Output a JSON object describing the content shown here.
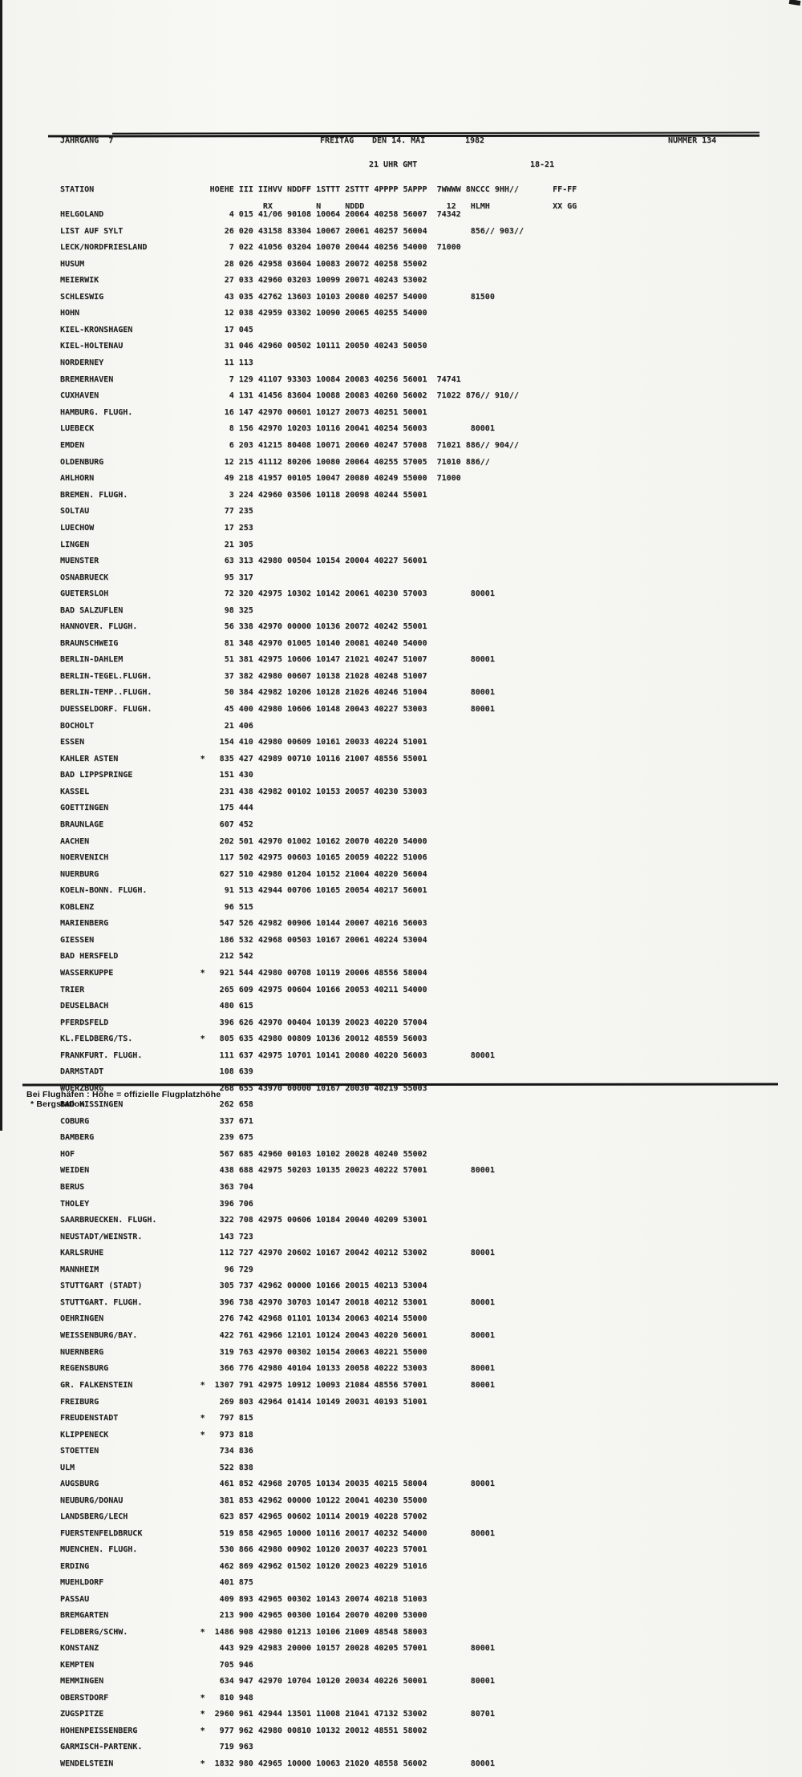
{
  "masthead": {
    "jahrgang": "JAHRGANG  7",
    "tag": "FREITAG",
    "datum": "DEN 14. MAI",
    "jahr": "1982",
    "nummer": "NUMMER 134",
    "zeit": "21 UHR GMT",
    "zeitraum": "18-21"
  },
  "columns": {
    "station": "STATION",
    "groups_main": "HOEHE III IIHVV NDDFF 1STTT 2STTT 4PPPP 5APPP",
    "groups_right": "7WWWW 8NCCC 9HH//",
    "groups_ff": "FF-FF",
    "sub_rx": "RX",
    "sub_n": "N",
    "sub_nddd": "NDDD",
    "sub_12": "12",
    "sub_hlmh": "HLMH",
    "sub_xxgg": "XX GG"
  },
  "legend": {
    "star_marker": "*",
    "row_schema": [
      "station_name",
      "bergstation_flag",
      "hoehe",
      "kennziffer",
      "code_groups",
      "right_groups",
      "right_indent"
    ]
  },
  "blocks": [
    [
      [
        "HELGOLAND",
        0,
        "4",
        "015",
        "41/06 90108 10064 20064 40258 56007",
        "74342",
        0
      ],
      [
        "LIST AUF SYLT",
        0,
        "26",
        "020",
        "43158 83304 10067 20061 40257 56004",
        "856// 903//",
        1
      ],
      [
        "LECK/NORDFRIESLAND",
        0,
        "7",
        "022",
        "41056 03204 10070 20044 40256 54000",
        "71000",
        0
      ],
      [
        "HUSUM",
        0,
        "28",
        "026",
        "42958 03604 10083 20072 40258 55002",
        "",
        0
      ],
      [
        "MEIERWIK",
        0,
        "27",
        "033",
        "42960 03203 10099 20071 40243 53002",
        "",
        0
      ],
      [
        "SCHLESWIG",
        0,
        "43",
        "035",
        "42762 13603 10103 20080 40257 54000",
        "81500",
        1
      ],
      [
        "HOHN",
        0,
        "12",
        "038",
        "42959 03302 10090 20065 40255 54000",
        "",
        0
      ],
      [
        "KIEL-KRONSHAGEN",
        0,
        "17",
        "045",
        "",
        "",
        0
      ],
      [
        "KIEL-HOLTENAU",
        0,
        "31",
        "046",
        "42960 00502 10111 20050 40243 50050",
        "",
        0
      ]
    ],
    [
      [
        "NORDERNEY",
        0,
        "11",
        "113",
        "",
        "",
        0
      ],
      [
        "BREMERHAVEN",
        0,
        "7",
        "129",
        "41107 93303 10084 20083 40256 56001",
        "74741",
        0
      ],
      [
        "CUXHAVEN",
        0,
        "4",
        "131",
        "41456 83604 10088 20083 40260 56002",
        "71022 876// 910//",
        0
      ],
      [
        "HAMBURG. FLUGH.",
        0,
        "16",
        "147",
        "42970 00601 10127 20073 40251 50001",
        "",
        0
      ],
      [
        "LUEBECK",
        0,
        "8",
        "156",
        "42970 10203 10116 20041 40254 56003",
        "80001",
        1
      ]
    ],
    [
      [
        "EMDEN",
        0,
        "6",
        "203",
        "41215 80408 10071 20060 40247 57008",
        "71021 886// 904//",
        0
      ],
      [
        "OLDENBURG",
        0,
        "12",
        "215",
        "41112 80206 10080 20064 40255 57005",
        "71010 886//",
        0
      ],
      [
        "AHLHORN",
        0,
        "49",
        "218",
        "41957 00105 10047 20080 40249 55000",
        "71000",
        0
      ],
      [
        "BREMEN. FLUGH.",
        0,
        "3",
        "224",
        "42960 03506 10118 20098 40244 55001",
        "",
        0
      ],
      [
        "SOLTAU",
        0,
        "77",
        "235",
        "",
        "",
        0
      ],
      [
        "LUECHOW",
        0,
        "17",
        "253",
        "",
        "",
        0
      ]
    ],
    [
      [
        "LINGEN",
        0,
        "21",
        "305",
        "",
        "",
        0
      ],
      [
        "MUENSTER",
        0,
        "63",
        "313",
        "42980 00504 10154 20004 40227 56001",
        "",
        0
      ],
      [
        "OSNABRUECK",
        0,
        "95",
        "317",
        "",
        "",
        0
      ],
      [
        "GUETERSLOH",
        0,
        "72",
        "320",
        "42975 10302 10142 20061 40230 57003",
        "80001",
        1
      ],
      [
        "BAD SALZUFLEN",
        0,
        "98",
        "325",
        "",
        "",
        0
      ],
      [
        "HANNOVER. FLUGH.",
        0,
        "56",
        "338",
        "42970 00000 10136 20072 40242 55001",
        "",
        0
      ],
      [
        "BRAUNSCHWEIG",
        0,
        "81",
        "348",
        "42970 01005 10140 20081 40240 54000",
        "",
        0
      ],
      [
        "BERLIN-DAHLEM",
        0,
        "51",
        "381",
        "42975 10606 10147 21021 40247 51007",
        "80001",
        1
      ],
      [
        "BERLIN-TEGEL.FLUGH.",
        0,
        "37",
        "382",
        "42980 00607 10138 21028 40248 51007",
        "",
        0
      ],
      [
        "BERLIN-TEMP..FLUGH.",
        0,
        "50",
        "384",
        "42982 10206 10128 21026 40246 51004",
        "80001",
        1
      ]
    ],
    [
      [
        "DUESSELDORF. FLUGH.",
        0,
        "45",
        "400",
        "42980 10606 10148 20043 40227 53003",
        "80001",
        1
      ],
      [
        "BOCHOLT",
        0,
        "21",
        "406",
        "",
        "",
        0
      ],
      [
        "ESSEN",
        0,
        "154",
        "410",
        "42980 00609 10161 20033 40224 51001",
        "",
        0
      ],
      [
        "KAHLER ASTEN",
        1,
        "835",
        "427",
        "42989 00710 10116 21007 48556 55001",
        "",
        0
      ],
      [
        "BAD LIPPSPRINGE",
        0,
        "151",
        "430",
        "",
        "",
        0
      ],
      [
        "KASSEL",
        0,
        "231",
        "438",
        "42982 00102 10153 20057 40230 53003",
        "",
        0
      ],
      [
        "GOETTINGEN",
        0,
        "175",
        "444",
        "",
        "",
        0
      ],
      [
        "BRAUNLAGE",
        0,
        "607",
        "452",
        "",
        "",
        0
      ]
    ],
    [
      [
        "AACHEN",
        0,
        "202",
        "501",
        "42970 01002 10162 20070 40220 54000",
        "",
        0
      ],
      [
        "NOERVENICH",
        0,
        "117",
        "502",
        "42975 00603 10165 20059 40222 51006",
        "",
        0
      ],
      [
        "NUERBURG",
        0,
        "627",
        "510",
        "42980 01204 10152 21004 40220 56004",
        "",
        0
      ],
      [
        "KOELN-BONN. FLUGH.",
        0,
        "91",
        "513",
        "42944 00706 10165 20054 40217 56001",
        "",
        0
      ],
      [
        "KOBLENZ",
        0,
        "96",
        "515",
        "",
        "",
        0
      ],
      [
        "MARIENBERG",
        0,
        "547",
        "526",
        "42982 00906 10144 20007 40216 56003",
        "",
        0
      ],
      [
        "GIESSEN",
        0,
        "186",
        "532",
        "42968 00503 10167 20061 40224 53004",
        "",
        0
      ],
      [
        "BAD HERSFELD",
        0,
        "212",
        "542",
        "",
        "",
        0
      ],
      [
        "WASSERKUPPE",
        1,
        "921",
        "544",
        "42980 00708 10119 20006 48556 58004",
        "",
        0
      ]
    ],
    [
      [
        "TRIER",
        0,
        "265",
        "609",
        "42975 00604 10166 20053 40211 54000",
        "",
        0
      ],
      [
        "DEUSELBACH",
        0,
        "480",
        "615",
        "",
        "",
        0
      ],
      [
        "PFERDSFELD",
        0,
        "396",
        "626",
        "42970 00404 10139 20023 40220 57004",
        "",
        0
      ],
      [
        "KL.FELDBERG/TS.",
        1,
        "805",
        "635",
        "42980 00809 10136 20012 48559 56003",
        "",
        0
      ],
      [
        "FRANKFURT. FLUGH.",
        0,
        "111",
        "637",
        "42975 10701 10141 20080 40220 56003",
        "80001",
        1
      ],
      [
        "DARMSTADT",
        0,
        "108",
        "639",
        "",
        "",
        0
      ],
      [
        "WUERZBURG",
        0,
        "268",
        "655",
        "43970 00000 10167 20030 40219 55003",
        "",
        0
      ],
      [
        "BAD KISSINGEN",
        0,
        "262",
        "658",
        "",
        "",
        0
      ],
      [
        "COBURG",
        0,
        "337",
        "671",
        "",
        "",
        0
      ],
      [
        "BAMBERG",
        0,
        "239",
        "675",
        "",
        "",
        0
      ],
      [
        "HOF",
        0,
        "567",
        "685",
        "42960 00103 10102 20028 40240 55002",
        "",
        0
      ],
      [
        "WEIDEN",
        0,
        "438",
        "688",
        "42975 50203 10135 20023 40222 57001",
        "80001",
        1
      ]
    ],
    [
      [
        "BERUS",
        0,
        "363",
        "704",
        "",
        "",
        0
      ],
      [
        "THOLEY",
        0,
        "396",
        "706",
        "",
        "",
        0
      ],
      [
        "SAARBRUECKEN. FLUGH.",
        0,
        "322",
        "708",
        "42975 00606 10184 20040 40209 53001",
        "",
        0
      ],
      [
        "NEUSTADT/WEINSTR.",
        0,
        "143",
        "723",
        "",
        "",
        0
      ],
      [
        "KARLSRUHE",
        0,
        "112",
        "727",
        "42970 20602 10167 20042 40212 53002",
        "80001",
        1
      ],
      [
        "MANNHEIM",
        0,
        "96",
        "729",
        "",
        "",
        0
      ],
      [
        "STUTTGART (STADT)",
        0,
        "305",
        "737",
        "42962 00000 10166 20015 40213 53004",
        "",
        0
      ],
      [
        "STUTTGART. FLUGH.",
        0,
        "396",
        "738",
        "42970 30703 10147 20018 40212 53001",
        "80001",
        1
      ],
      [
        "OEHRINGEN",
        0,
        "276",
        "742",
        "42968 01101 10134 20063 40214 55000",
        "",
        0
      ]
    ],
    [
      [
        "WEISSENBURG/BAY.",
        0,
        "422",
        "761",
        "42966 12101 10124 20043 40220 56001",
        "80001",
        1
      ],
      [
        "NUERNBERG",
        0,
        "319",
        "763",
        "42970 00302 10154 20063 40221 55000",
        "",
        0
      ],
      [
        "REGENSBURG",
        0,
        "366",
        "776",
        "42980 40104 10133 20058 40222 53003",
        "80001",
        1
      ],
      [
        "GR. FALKENSTEIN",
        1,
        "1307",
        "791",
        "42975 10912 10093 21084 48556 57001",
        "80001",
        1
      ]
    ],
    [
      [
        "FREIBURG",
        0,
        "269",
        "803",
        "42964 01414 10149 20031 40193 51001",
        "",
        0
      ],
      [
        "FREUDENSTADT",
        1,
        "797",
        "815",
        "",
        "",
        0
      ],
      [
        "KLIPPENECK",
        1,
        "973",
        "818",
        "",
        "",
        0
      ],
      [
        "STOETTEN",
        0,
        "734",
        "836",
        "",
        "",
        0
      ],
      [
        "ULM",
        0,
        "522",
        "838",
        "",
        "",
        0
      ],
      [
        "AUGSBURG",
        0,
        "461",
        "852",
        "42968 20705 10134 20035 40215 58004",
        "80001",
        1
      ],
      [
        "NEUBURG/DONAU",
        0,
        "381",
        "853",
        "42962 00000 10122 20041 40230 55000",
        "",
        0
      ],
      [
        "LANDSBERG/LECH",
        0,
        "623",
        "857",
        "42965 00602 10114 20019 40228 57002",
        "",
        0
      ],
      [
        "FUERSTENFELDBRUCK",
        0,
        "519",
        "858",
        "42965 10000 10116 20017 40232 54000",
        "80001",
        1
      ],
      [
        "MUENCHEN. FLUGH.",
        0,
        "530",
        "866",
        "42980 00902 10120 20037 40223 57001",
        "",
        0
      ],
      [
        "ERDING",
        0,
        "462",
        "869",
        "42962 01502 10120 20023 40229 51016",
        "",
        0
      ],
      [
        "MUEHLDORF",
        0,
        "401",
        "875",
        "",
        "",
        0
      ],
      [
        "PASSAU",
        0,
        "409",
        "893",
        "42965 00302 10143 20074 40218 51003",
        "",
        0
      ],
      [
        "BREMGARTEN",
        0,
        "213",
        "900",
        "42965 00300 10164 20070 40200 53000",
        "",
        0
      ],
      [
        "FELDBERG/SCHW.",
        1,
        "1486",
        "908",
        "42980 01213 10106 21009 48548 58003",
        "",
        0
      ],
      [
        "KONSTANZ",
        0,
        "443",
        "929",
        "42983 20000 10157 20028 40205 57001",
        "80001",
        1
      ],
      [
        "KEMPTEN",
        0,
        "705",
        "946",
        "",
        "",
        0
      ],
      [
        "MEMMINGEN",
        0,
        "634",
        "947",
        "42970 10704 10120 20034 40226 50001",
        "80001",
        1
      ],
      [
        "OBERSTDORF",
        1,
        "810",
        "948",
        "",
        "",
        0
      ],
      [
        "ZUGSPITZE",
        1,
        "2960",
        "961",
        "42944 13501 11008 21041 47132 53002",
        "80701",
        1
      ],
      [
        "HOHENPEISSENBERG",
        1,
        "977",
        "962",
        "42980 00810 10132 20012 48551 58002",
        "",
        0
      ],
      [
        "GARMISCH-PARTENK.",
        0,
        "719",
        "963",
        "",
        "",
        0
      ],
      [
        "WENDELSTEIN",
        1,
        "1832",
        "980",
        "42965 10000 10063 21020 48558 56002",
        "80001",
        1
      ]
    ]
  ],
  "footer": {
    "line1": "Bei Flughäfen : Höhe = offizielle Flugplatzhöhe",
    "line2": "* Bergstation"
  }
}
